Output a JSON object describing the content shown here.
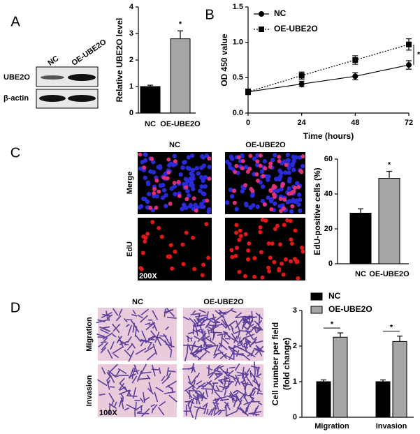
{
  "figure": {
    "panels": [
      "A",
      "B",
      "C",
      "D"
    ],
    "blot": {
      "lanes": [
        "NC",
        "OE-UBE2O"
      ],
      "rows": [
        "UBE2O",
        "β-actin"
      ]
    },
    "edu": {
      "columns": [
        "NC",
        "OE-UBE2O"
      ],
      "rows": [
        "Merge",
        "EdU"
      ],
      "magnification": "200X"
    },
    "transwell": {
      "columns": [
        "NC",
        "OE-UBE2O"
      ],
      "rows": [
        "Migration",
        "Invasion"
      ],
      "magnification": "100X"
    }
  },
  "chart_data": [
    {
      "type": "bar",
      "ylabel": "Relative UBE2O level",
      "categories": [
        "NC",
        "OE-UBE2O"
      ],
      "values": [
        1.0,
        2.8
      ],
      "errors": [
        0.05,
        0.3
      ],
      "colors": [
        "#000000",
        "#a6a6a6"
      ],
      "ylim": [
        0,
        4
      ],
      "yticks": [
        0,
        1,
        2,
        3,
        4
      ],
      "annotation": "*"
    },
    {
      "type": "line",
      "xlabel": "Time (hours)",
      "ylabel": "OD 450 value",
      "x": [
        0,
        24,
        48,
        72
      ],
      "series": [
        {
          "name": "NC",
          "color": "#000000",
          "marker": "circle",
          "linestyle": "solid",
          "values": [
            0.3,
            0.41,
            0.52,
            0.68
          ],
          "errors": [
            0.03,
            0.04,
            0.05,
            0.06
          ]
        },
        {
          "name": "OE-UBE2O",
          "color": "#000000",
          "marker": "square",
          "linestyle": "dotted",
          "values": [
            0.3,
            0.53,
            0.75,
            0.97
          ],
          "errors": [
            0.04,
            0.05,
            0.06,
            0.08
          ]
        }
      ],
      "xlim": [
        0,
        72
      ],
      "xticks": [
        0,
        24,
        48,
        72
      ],
      "ylim": [
        0,
        1.5
      ],
      "yticks": [
        {
          "value": 0,
          "label": "0.0"
        },
        0.5,
        {
          "value": 1,
          "label": "1.0"
        },
        1.5
      ],
      "annotation": "*"
    },
    {
      "type": "bar",
      "ylabel": "EdU-positive cells (%)",
      "categories": [
        "NC",
        "OE-UBE2O"
      ],
      "values": [
        29,
        49
      ],
      "errors": [
        2.5,
        4
      ],
      "colors": [
        "#000000",
        "#a6a6a6"
      ],
      "ylim": [
        0,
        60
      ],
      "yticks": [
        0,
        20,
        40,
        60
      ],
      "annotation": "*"
    },
    {
      "type": "grouped-bar",
      "ylabel": [
        "Cell number per field",
        "(fold change)"
      ],
      "categories": [
        "Migration",
        "Invasion"
      ],
      "series": [
        {
          "name": "NC",
          "color": "#000000",
          "values": [
            1.0,
            1.0
          ],
          "errors": [
            0.05,
            0.05
          ]
        },
        {
          "name": "OE-UBE2O",
          "color": "#a6a6a6",
          "values": [
            2.25,
            2.13
          ],
          "errors": [
            0.12,
            0.15
          ]
        }
      ],
      "ylim": [
        0,
        3
      ],
      "yticks": [
        0,
        1,
        2,
        3
      ],
      "annotations": [
        "*",
        "*"
      ]
    }
  ]
}
